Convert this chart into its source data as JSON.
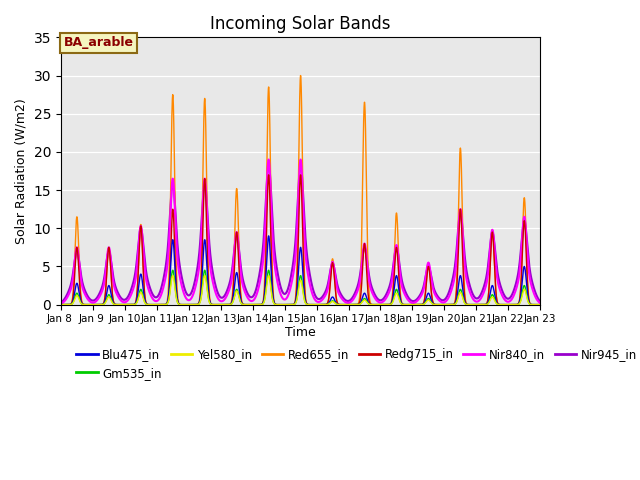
{
  "title": "Incoming Solar Bands",
  "xlabel": "Time",
  "ylabel": "Solar Radiation (W/m2)",
  "annotation": "BA_arable",
  "xlim_days": [
    8,
    23
  ],
  "ylim": [
    0,
    35
  ],
  "yticks": [
    0,
    5,
    10,
    15,
    20,
    25,
    30,
    35
  ],
  "bg_color": "#e8e8e8",
  "series": {
    "Blu475_in": {
      "color": "#0000dd",
      "lw": 1.0
    },
    "Gm535_in": {
      "color": "#00cc00",
      "lw": 1.0
    },
    "Yel580_in": {
      "color": "#eeee00",
      "lw": 1.0
    },
    "Red655_in": {
      "color": "#ff8800",
      "lw": 1.0
    },
    "Redg715_in": {
      "color": "#cc0000",
      "lw": 1.0
    },
    "Nir840_in": {
      "color": "#ff00ff",
      "lw": 1.5
    },
    "Nir945_in": {
      "color": "#9900cc",
      "lw": 1.5
    }
  },
  "days": [
    8,
    9,
    10,
    11,
    12,
    13,
    14,
    15,
    16,
    17,
    18,
    19,
    20,
    21,
    22
  ],
  "peak_centers": [
    8.5,
    9.5,
    10.5,
    11.5,
    12.5,
    13.5,
    14.5,
    15.5,
    16.5,
    17.5,
    18.5,
    19.5,
    20.5,
    21.5,
    22.5
  ],
  "peak_orange": [
    11.5,
    7.5,
    10.5,
    27.5,
    27.0,
    15.2,
    28.5,
    30.0,
    6.0,
    26.5,
    12.0,
    5.5,
    20.5,
    9.8,
    14.0
  ],
  "peak_magenta": [
    7.5,
    7.5,
    10.3,
    16.5,
    16.5,
    9.5,
    19.0,
    19.0,
    5.6,
    8.0,
    7.8,
    5.5,
    12.5,
    9.8,
    11.5
  ],
  "peak_red": [
    7.5,
    7.5,
    10.3,
    12.5,
    16.5,
    9.5,
    17.0,
    17.0,
    5.5,
    8.0,
    7.5,
    5.0,
    12.5,
    9.5,
    11.0
  ],
  "peak_blue": [
    2.8,
    2.5,
    4.0,
    8.5,
    8.5,
    4.2,
    9.0,
    7.5,
    1.0,
    1.5,
    3.8,
    1.5,
    3.8,
    2.5,
    5.0
  ],
  "peak_purple": [
    7.0,
    7.0,
    10.0,
    16.0,
    16.0,
    9.0,
    18.5,
    18.5,
    5.4,
    7.5,
    7.5,
    5.0,
    12.0,
    9.5,
    11.0
  ],
  "peak_green": [
    1.5,
    1.3,
    2.0,
    4.5,
    4.5,
    2.0,
    4.5,
    3.8,
    0.5,
    0.8,
    2.0,
    0.8,
    2.0,
    1.3,
    2.5
  ],
  "peak_yellow": [
    1.2,
    1.0,
    1.6,
    3.8,
    3.8,
    1.8,
    3.8,
    3.2,
    0.4,
    0.6,
    1.5,
    0.6,
    1.6,
    1.0,
    2.0
  ],
  "spike_sigma": 0.055,
  "base_sigma": 0.18
}
